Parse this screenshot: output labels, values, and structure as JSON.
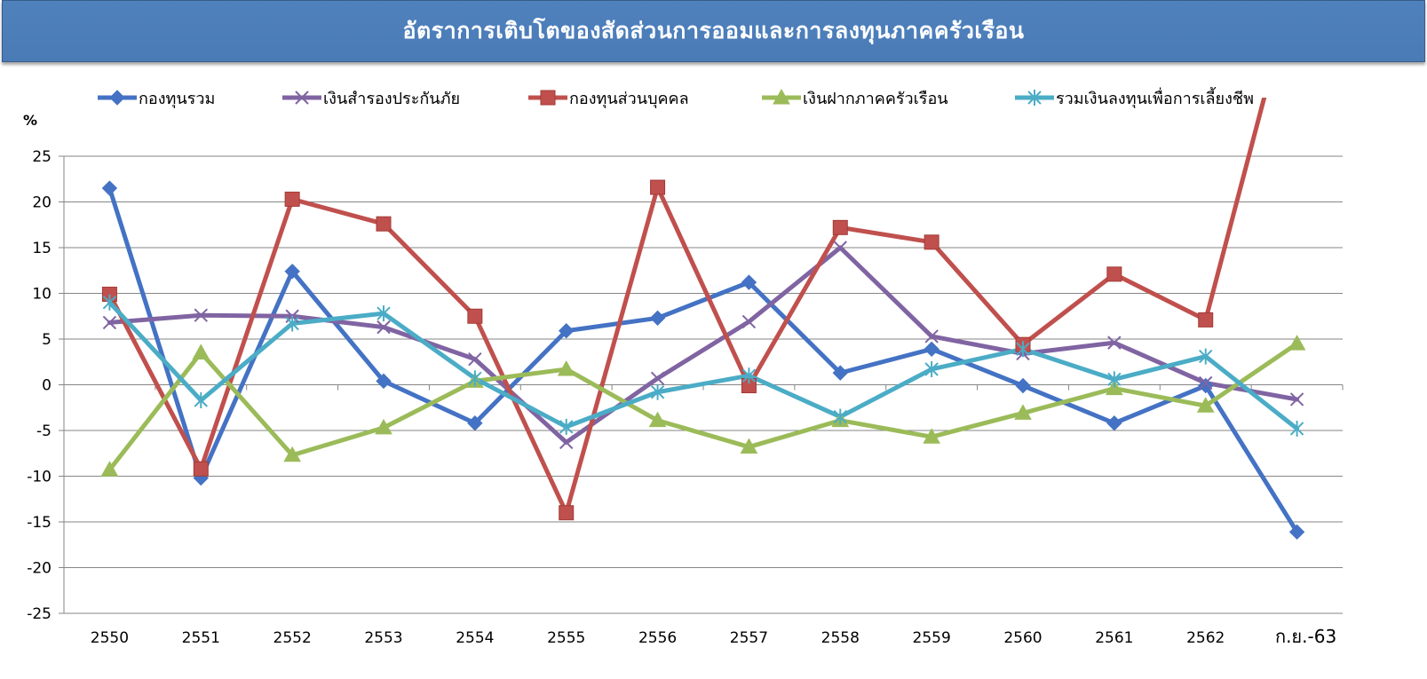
{
  "chart_data": {
    "type": "line",
    "title": "อัตราการเติบโตของสัดส่วนการออมและการลงทุนภาคครัวเรือน",
    "ylabel": "%",
    "xlabel": "",
    "ylim": [
      -25,
      25
    ],
    "yticks": [
      25,
      20,
      15,
      10,
      5,
      0,
      -5,
      -10,
      -15,
      -20,
      -25
    ],
    "grid": true,
    "legend_position": "top",
    "categories": [
      "2550",
      "2551",
      "2552",
      "2553",
      "2554",
      "2555",
      "2556",
      "2557",
      "2558",
      "2559",
      "2560",
      "2561",
      "2562",
      "ก.ย.-63"
    ],
    "series": [
      {
        "name": "กองทุนรวม",
        "color": "#4472c4",
        "marker": "diamond",
        "values": [
          21.5,
          -10.2,
          12.4,
          0.4,
          -4.2,
          5.9,
          7.3,
          11.2,
          1.3,
          3.9,
          -0.1,
          -4.2,
          -0.1,
          -16.1
        ]
      },
      {
        "name": "เงินสำรองประกันภัย",
        "color": "#8064a2",
        "marker": "x",
        "values": [
          6.8,
          7.6,
          7.5,
          6.3,
          2.8,
          -6.3,
          0.7,
          6.9,
          15.0,
          5.3,
          3.4,
          4.6,
          0.2,
          -1.6
        ]
      },
      {
        "name": "กองทุนส่วนบุคคล",
        "color": "#c0504d",
        "marker": "square",
        "values": [
          9.9,
          -9.2,
          20.3,
          17.6,
          7.5,
          -14.0,
          21.6,
          -0.1,
          17.2,
          15.6,
          4.4,
          12.1,
          7.1,
          45.0
        ]
      },
      {
        "name": "เงินฝากภาคครัวเรือน",
        "color": "#9bbb59",
        "marker": "triangle",
        "values": [
          -9.3,
          3.5,
          -7.7,
          -4.7,
          0.4,
          1.7,
          -3.9,
          -6.8,
          -3.9,
          -5.7,
          -3.1,
          -0.4,
          -2.3,
          4.5
        ]
      },
      {
        "name": "รวมเงินลงทุนเพื่อการเลี้ยงชีพ",
        "color": "#4bacc6",
        "marker": "star",
        "values": [
          9.0,
          -1.7,
          6.7,
          7.8,
          0.7,
          -4.6,
          -0.8,
          1.0,
          -3.5,
          1.7,
          3.9,
          0.6,
          3.1,
          -4.8
        ]
      }
    ]
  }
}
